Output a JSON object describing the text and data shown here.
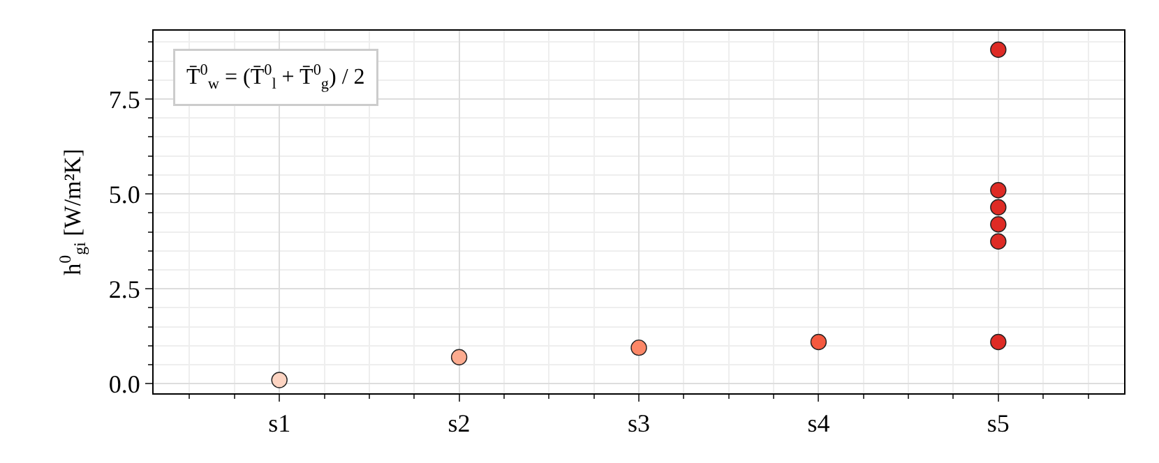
{
  "chart_data": {
    "type": "scatter",
    "ylabel": "h$^{0}$$_{gi}$ [W/m²K]",
    "categories": [
      "s1",
      "s2",
      "s3",
      "s4",
      "s5"
    ],
    "ylim": [
      -0.25,
      9.3
    ],
    "yticks": [
      {
        "value": 0,
        "label": "0.0"
      },
      2.5,
      {
        "value": 5,
        "label": "5.0"
      },
      7.5
    ],
    "grid": true,
    "marker": "circle",
    "annotations": [
      "T̄$^{0}$$_{w}$ = (T̄$^{0}$$_{l}$ + T̄$^{0}$$_{g}$) / 2"
    ],
    "series": [
      {
        "color": "#fdd4c2",
        "x": [
          "s1"
        ],
        "values": [
          0.1
        ]
      },
      {
        "color": "#fcab8f",
        "x": [
          "s2"
        ],
        "values": [
          0.7
        ]
      },
      {
        "color": "#fc8767",
        "x": [
          "s3"
        ],
        "values": [
          0.95
        ]
      },
      {
        "color": "#f4593f",
        "x": [
          "s4"
        ],
        "values": [
          1.1
        ]
      },
      {
        "color": "#de2b25",
        "x": [
          "s5",
          "s5",
          "s5",
          "s5",
          "s5",
          "s5"
        ],
        "values": [
          1.1,
          3.75,
          4.2,
          4.65,
          5.1,
          8.8
        ]
      }
    ]
  }
}
